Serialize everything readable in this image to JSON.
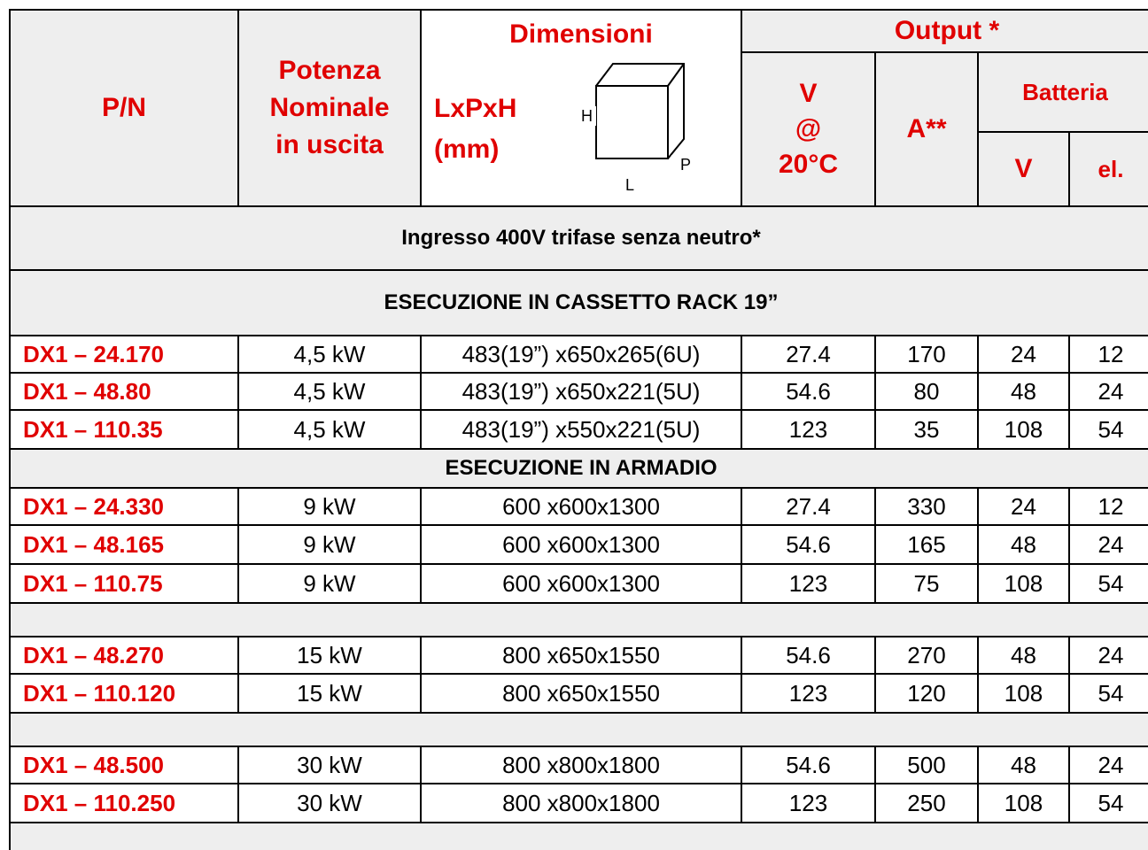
{
  "header": {
    "pn": "P/N",
    "power": [
      "Potenza",
      "Nominale",
      "in uscita"
    ],
    "dimensions": {
      "title": "Dimensioni",
      "unit": [
        "LxPxH",
        "(mm)"
      ],
      "axes": {
        "h": "H",
        "p": "P",
        "l": "L"
      }
    },
    "output": {
      "title": "Output *",
      "voltage": [
        "V",
        "@",
        "20°C"
      ],
      "current": "A**",
      "battery": {
        "title": "Batteria",
        "voltage": "V",
        "cells": "el."
      }
    }
  },
  "body": [
    "Ingresso 400V trifase senza neutro*",
    "ESECUZIONE IN CASSETTO RACK 19”",
    [
      "DX1 – 24.170",
      "4,5 kW",
      "483(19”) x650x265(6U)",
      "27.4",
      "170",
      "24",
      "12"
    ],
    [
      "DX1 – 48.80",
      "4,5 kW",
      "483(19”) x650x221(5U)",
      "54.6",
      "80",
      "48",
      "24"
    ],
    [
      "DX1 – 110.35",
      "4,5 kW",
      "483(19”) x550x221(5U)",
      "123",
      "35",
      "108",
      "54"
    ],
    "ESECUZIONE IN ARMADIO",
    [
      "DX1 – 24.330",
      "9 kW",
      "600 x600x1300",
      "27.4",
      "330",
      "24",
      "12"
    ],
    [
      "DX1 – 48.165",
      "9 kW",
      "600 x600x1300",
      "54.6",
      "165",
      "48",
      "24"
    ],
    [
      "DX1 – 110.75",
      "9 kW",
      "600 x600x1300",
      "123",
      "75",
      "108",
      "54"
    ],
    null,
    [
      "DX1 – 48.270",
      "15 kW",
      "800 x650x1550",
      "54.6",
      "270",
      "48",
      "24"
    ],
    [
      "DX1 – 110.120",
      "15 kW",
      "800 x650x1550",
      "123",
      "120",
      "108",
      "54"
    ],
    null,
    [
      "DX1 – 48.500",
      "30 kW",
      "800 x800x1800",
      "54.6",
      "500",
      "48",
      "24"
    ],
    [
      "DX1 – 110.250",
      "30 kW",
      "800 x800x1800",
      "123",
      "250",
      "108",
      "54"
    ],
    null
  ]
}
